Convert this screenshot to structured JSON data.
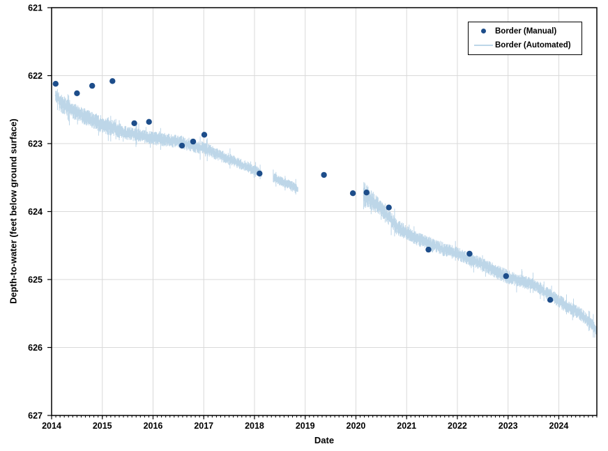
{
  "chart": {
    "y_axis_title": "Depth-to-water (feet below ground surface)",
    "x_axis_title": "Date",
    "legend": {
      "manual_label": "Border (Manual)",
      "automated_label": "Border (Automated)"
    }
  },
  "colors": {
    "manual_point": "#1d4d8a",
    "automated_band": "#bdd6e8",
    "gridline": "#d9d9d9",
    "axis": "#000000",
    "text": "#000000",
    "background": "#ffffff"
  },
  "chart_data": {
    "type": "scatter",
    "title": "",
    "xlabel": "Date",
    "ylabel": "Depth-to-water (feet below ground surface)",
    "x_axis": {
      "range": [
        2014,
        2024.75
      ],
      "major_ticks": [
        2014,
        2015,
        2016,
        2017,
        2018,
        2019,
        2020,
        2021,
        2022,
        2023,
        2024
      ],
      "minor_tick_interval_years": 0.08333,
      "grid": true
    },
    "y_axis": {
      "range": [
        621,
        627
      ],
      "ticks": [
        621,
        622,
        623,
        624,
        625,
        626,
        627
      ],
      "inverted": true,
      "grid": true
    },
    "legend_position": "top-right",
    "series": [
      {
        "name": "Border (Manual)",
        "type": "scatter",
        "color": "#1d4d8a",
        "marker_radius_px": 4.2,
        "points": [
          [
            2014.08,
            622.12
          ],
          [
            2014.5,
            622.26
          ],
          [
            2014.8,
            622.15
          ],
          [
            2015.2,
            622.08
          ],
          [
            2015.63,
            622.7
          ],
          [
            2015.92,
            622.68
          ],
          [
            2016.57,
            623.03
          ],
          [
            2016.79,
            622.97
          ],
          [
            2017.01,
            622.87
          ],
          [
            2018.1,
            623.44
          ],
          [
            2019.37,
            623.46
          ],
          [
            2019.94,
            623.73
          ],
          [
            2020.21,
            623.72
          ],
          [
            2020.65,
            623.94
          ],
          [
            2021.43,
            624.56
          ],
          [
            2022.24,
            624.62
          ],
          [
            2022.96,
            624.95
          ],
          [
            2023.83,
            625.3
          ]
        ]
      },
      {
        "name": "Border (Automated)",
        "type": "noisy-line",
        "color": "#bdd6e8",
        "note": "anchors are [decimal_year, center_depth_ft, noise_half_amplitude_ft]; gaps between segments are periods with no automated record",
        "segments": [
          {
            "anchors": [
              [
                2014.08,
                622.28,
                0.1
              ],
              [
                2014.2,
                622.42,
                0.14
              ],
              [
                2014.5,
                622.55,
                0.12
              ],
              [
                2015.0,
                622.72,
                0.13
              ],
              [
                2015.5,
                622.85,
                0.1
              ],
              [
                2016.0,
                622.92,
                0.1
              ],
              [
                2016.5,
                622.97,
                0.1
              ],
              [
                2017.0,
                623.07,
                0.1
              ],
              [
                2017.4,
                623.2,
                0.09
              ],
              [
                2017.8,
                623.32,
                0.08
              ],
              [
                2018.14,
                623.44,
                0.07
              ]
            ]
          },
          {
            "anchors": [
              [
                2018.37,
                623.5,
                0.07
              ],
              [
                2018.86,
                623.67,
                0.08
              ]
            ]
          },
          {
            "anchors": [
              [
                2020.15,
                623.75,
                0.22
              ],
              [
                2020.25,
                623.8,
                0.16
              ],
              [
                2020.5,
                623.95,
                0.12
              ],
              [
                2020.8,
                624.22,
                0.12
              ],
              [
                2021.2,
                624.4,
                0.1
              ],
              [
                2021.6,
                624.52,
                0.11
              ],
              [
                2022.0,
                624.62,
                0.1
              ],
              [
                2022.5,
                624.78,
                0.1
              ],
              [
                2023.0,
                624.97,
                0.11
              ],
              [
                2023.5,
                625.07,
                0.09
              ],
              [
                2024.0,
                625.32,
                0.1
              ],
              [
                2024.45,
                625.52,
                0.1
              ],
              [
                2024.75,
                625.73,
                0.09
              ]
            ]
          }
        ]
      }
    ]
  }
}
